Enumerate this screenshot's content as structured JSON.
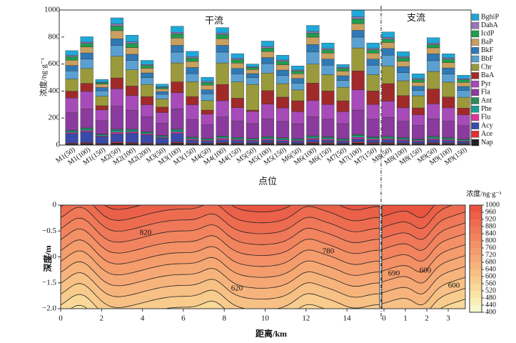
{
  "chart_data": [
    {
      "type": "stacked-bar",
      "ylabel": "浓度/ng·g⁻¹",
      "xlabel": "点位",
      "annotations": [
        "干流",
        "支流"
      ],
      "categories": [
        "M1(50)",
        "M1(100)",
        "M1(150)",
        "M2(50)",
        "M2(100)",
        "M2(200)",
        "M3(50)",
        "M3(100)",
        "M3(150)",
        "M4(50)",
        "M4(100)",
        "M4(150)",
        "M5(50)",
        "M5(100)",
        "M5(150)",
        "M6(50)",
        "M6(100)",
        "M6(150)",
        "M7(50)",
        "M7(100)",
        "M7(150)",
        "M8(50)",
        "M8(100)",
        "M8(150)",
        "M9(50)",
        "M9(100)",
        "M9(150)"
      ],
      "ylim": [
        0,
        1000
      ],
      "yticks": [
        0,
        200,
        400,
        600,
        800,
        1000
      ],
      "series": [
        {
          "name": "Nap",
          "color": "#222222",
          "values": [
            10,
            12,
            8,
            15,
            12,
            10,
            8,
            14,
            10,
            9,
            13,
            10,
            9,
            12,
            10,
            9,
            13,
            11,
            9,
            15,
            11,
            12,
            10,
            8,
            12,
            10,
            8
          ]
        },
        {
          "name": "Ace",
          "color": "#e03030",
          "values": [
            5,
            6,
            4,
            8,
            6,
            5,
            4,
            7,
            5,
            4,
            6,
            5,
            4,
            6,
            5,
            4,
            7,
            6,
            4,
            8,
            6,
            6,
            5,
            4,
            6,
            5,
            4
          ]
        },
        {
          "name": "Acy",
          "color": "#3a4aa8",
          "values": [
            70,
            80,
            50,
            60,
            70,
            60,
            40,
            65,
            20,
            15,
            20,
            18,
            15,
            18,
            16,
            14,
            20,
            18,
            14,
            22,
            18,
            20,
            17,
            14,
            20,
            17,
            13
          ]
        },
        {
          "name": "Flu",
          "color": "#e0359a",
          "values": [
            8,
            10,
            6,
            12,
            10,
            8,
            6,
            11,
            8,
            7,
            10,
            8,
            7,
            9,
            8,
            7,
            10,
            9,
            7,
            12,
            9,
            9,
            8,
            6,
            9,
            8,
            6
          ]
        },
        {
          "name": "Phe",
          "color": "#1aa090",
          "values": [
            10,
            12,
            8,
            14,
            12,
            10,
            8,
            13,
            10,
            9,
            12,
            10,
            9,
            11,
            10,
            9,
            12,
            11,
            9,
            14,
            11,
            11,
            10,
            8,
            11,
            10,
            8
          ]
        },
        {
          "name": "Ant",
          "color": "#2e8b57",
          "values": [
            6,
            7,
            5,
            8,
            7,
            6,
            5,
            8,
            6,
            5,
            7,
            6,
            5,
            7,
            6,
            5,
            7,
            6,
            5,
            8,
            6,
            7,
            6,
            5,
            7,
            6,
            5
          ]
        },
        {
          "name": "Fla",
          "color": "#8b3a9e",
          "values": [
            130,
            140,
            100,
            170,
            140,
            110,
            90,
            150,
            130,
            100,
            140,
            120,
            110,
            130,
            120,
            110,
            140,
            130,
            110,
            180,
            130,
            140,
            120,
            100,
            130,
            120,
            100
          ]
        },
        {
          "name": "Pyr",
          "color": "#a64bb8",
          "values": [
            110,
            130,
            80,
            130,
            110,
            90,
            80,
            120,
            110,
            80,
            120,
            100,
            90,
            110,
            100,
            90,
            120,
            110,
            90,
            150,
            110,
            120,
            100,
            80,
            110,
            100,
            80
          ]
        },
        {
          "name": "BaA",
          "color": "#a02a2a",
          "values": [
            50,
            60,
            30,
            80,
            70,
            60,
            40,
            80,
            60,
            30,
            120,
            70,
            10,
            100,
            80,
            80,
            130,
            100,
            80,
            140,
            100,
            130,
            90,
            50,
            110,
            80,
            50
          ]
        },
        {
          "name": "Chr",
          "color": "#9a9a3c",
          "values": [
            90,
            110,
            70,
            160,
            120,
            90,
            60,
            140,
            110,
            70,
            160,
            120,
            190,
            130,
            100,
            80,
            140,
            120,
            100,
            170,
            120,
            130,
            110,
            90,
            130,
            110,
            80
          ]
        },
        {
          "name": "BbF",
          "color": "#5aa0d0",
          "values": [
            60,
            70,
            40,
            80,
            70,
            50,
            35,
            80,
            60,
            50,
            80,
            60,
            50,
            70,
            60,
            50,
            90,
            70,
            50,
            80,
            70,
            80,
            60,
            40,
            80,
            60,
            50
          ]
        },
        {
          "name": "BkF",
          "color": "#2f79b5",
          "values": [
            40,
            45,
            25,
            50,
            45,
            35,
            20,
            50,
            45,
            30,
            50,
            40,
            30,
            45,
            40,
            35,
            55,
            45,
            35,
            50,
            45,
            50,
            45,
            30,
            50,
            45,
            30
          ]
        },
        {
          "name": "BaP",
          "color": "#c8a060",
          "values": [
            40,
            45,
            25,
            60,
            50,
            35,
            20,
            55,
            45,
            35,
            50,
            40,
            30,
            45,
            40,
            35,
            55,
            45,
            35,
            50,
            45,
            45,
            40,
            30,
            45,
            40,
            30
          ]
        },
        {
          "name": "IcdP",
          "color": "#1e9e50",
          "values": [
            25,
            25,
            10,
            35,
            30,
            20,
            10,
            30,
            25,
            20,
            30,
            25,
            15,
            25,
            25,
            20,
            30,
            25,
            20,
            35,
            25,
            25,
            25,
            20,
            25,
            25,
            20
          ]
        },
        {
          "name": "DahA",
          "color": "#9a78b8",
          "values": [
            10,
            10,
            5,
            15,
            12,
            8,
            5,
            12,
            10,
            8,
            12,
            10,
            6,
            12,
            10,
            8,
            12,
            10,
            8,
            15,
            10,
            12,
            10,
            8,
            10,
            10,
            8
          ]
        },
        {
          "name": "BghiP",
          "color": "#1fa8d8",
          "values": [
            35,
            40,
            20,
            45,
            50,
            30,
            20,
            45,
            40,
            30,
            40,
            35,
            20,
            40,
            35,
            30,
            45,
            40,
            20,
            50,
            40,
            40,
            35,
            35,
            40,
            30,
            25
          ]
        }
      ]
    },
    {
      "type": "contour",
      "xlabel": "距离/km",
      "ylabel": "深度/m",
      "colorbar_label": "浓度/ng·g⁻¹",
      "ylim": [
        -2,
        0
      ],
      "yticks": [
        0,
        {
          "value": -0.5,
          "label": "−0.5"
        },
        {
          "value": -1,
          "label": "−1.0"
        },
        {
          "value": -1.5,
          "label": "−1.5"
        },
        {
          "value": -2,
          "label": "−2.0"
        }
      ],
      "panels": [
        {
          "xlim": [
            0,
            15.6
          ],
          "xticks": [
            0,
            2,
            4,
            6,
            8,
            10,
            12,
            14
          ]
        },
        {
          "xlim": [
            -0.1,
            3.8
          ],
          "xticks": [
            0,
            1,
            2,
            3
          ]
        }
      ],
      "levels": [
        400,
        440,
        480,
        520,
        560,
        600,
        640,
        680,
        720,
        760,
        800,
        840,
        880,
        920,
        960,
        1000
      ],
      "colors": [
        "#f7f7cc",
        "#f8efb8",
        "#f9e4a6",
        "#f9d898",
        "#f8cc8c",
        "#f7c084",
        "#f6b47c",
        "#f5a874",
        "#f49c6c",
        "#f39066",
        "#f1845e",
        "#ef7858",
        "#ed6c50",
        "#ea6048",
        "#e85440"
      ],
      "contour_labels": [
        820,
        780,
        620,
        690,
        600,
        600
      ]
    }
  ]
}
